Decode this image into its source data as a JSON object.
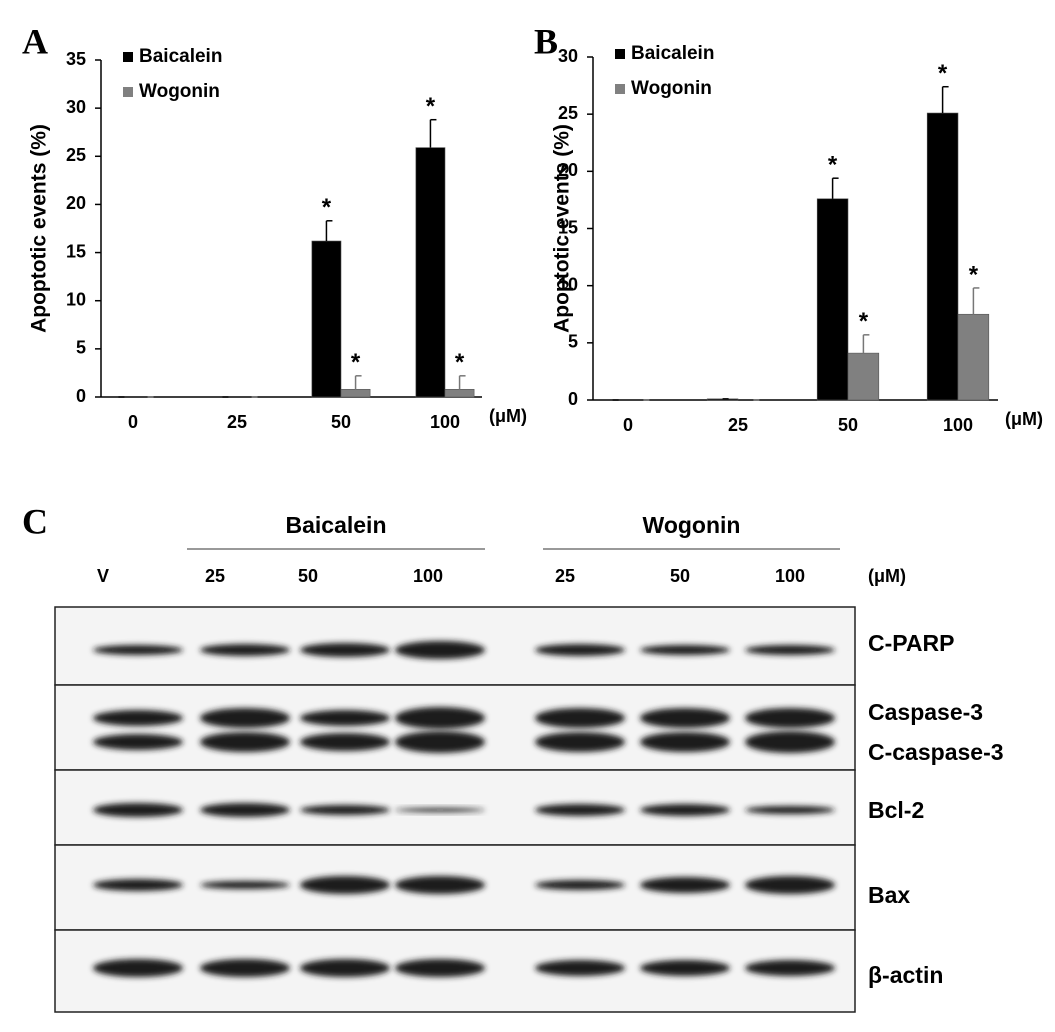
{
  "chart_data": [
    {
      "type": "bar",
      "panel_label": "A",
      "ylabel": "Apoptotic events (%)",
      "xunit": "(μM)",
      "categories": [
        "0",
        "25",
        "50",
        "100"
      ],
      "ylim": [
        0,
        35
      ],
      "yticks": [
        0,
        5,
        10,
        15,
        20,
        25,
        30,
        35
      ],
      "legend": "upper left",
      "series": [
        {
          "name": "Baicalein",
          "color": "#000000",
          "values": [
            0,
            0,
            16.2,
            25.9
          ],
          "errors": [
            0,
            0,
            2.1,
            2.9
          ],
          "markers": [
            null,
            null,
            "*",
            "*"
          ]
        },
        {
          "name": "Wogonin",
          "color": "#808080",
          "values": [
            0,
            0,
            0.8,
            0.8
          ],
          "errors": [
            0,
            0,
            1.4,
            1.4
          ],
          "markers": [
            null,
            null,
            "*",
            "*"
          ]
        }
      ]
    },
    {
      "type": "bar",
      "panel_label": "B",
      "ylabel": "Apoptotic events (%)",
      "xunit": "(μM)",
      "categories": [
        "0",
        "25",
        "50",
        "100"
      ],
      "ylim": [
        0,
        30
      ],
      "yticks": [
        0,
        5,
        10,
        15,
        20,
        25,
        30
      ],
      "legend": "upper left",
      "series": [
        {
          "name": "Baicalein",
          "color": "#000000",
          "values": [
            0,
            0.1,
            17.6,
            25.1
          ],
          "errors": [
            0,
            0,
            1.8,
            2.3
          ],
          "markers": [
            null,
            null,
            "*",
            "*"
          ]
        },
        {
          "name": "Wogonin",
          "color": "#808080",
          "values": [
            0,
            0,
            4.1,
            7.5
          ],
          "errors": [
            0,
            0,
            1.6,
            2.3
          ],
          "markers": [
            null,
            null,
            "*",
            "*"
          ]
        }
      ]
    }
  ],
  "blot": {
    "panel_label": "C",
    "groups": [
      "Baicalein",
      "Wogonin"
    ],
    "lanes": [
      "V",
      "25",
      "50",
      "100",
      "25",
      "50",
      "100"
    ],
    "unit": "(μM)",
    "rows": [
      [
        "C-PARP"
      ],
      [
        "Caspase-3",
        "C-caspase-3"
      ],
      [
        "Bcl-2"
      ],
      [
        "Bax"
      ],
      [
        "β-actin"
      ]
    ]
  }
}
